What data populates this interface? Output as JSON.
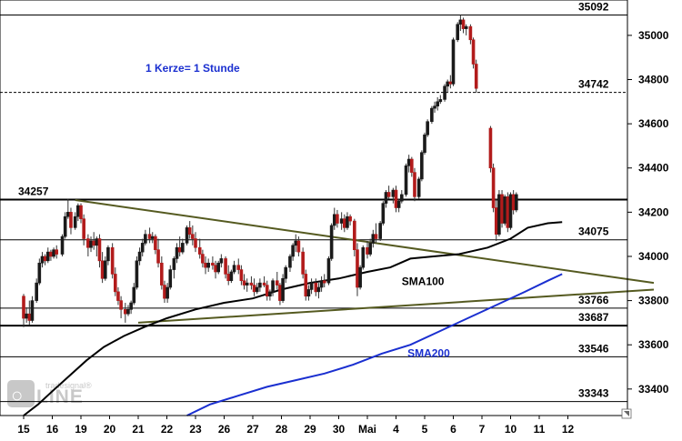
{
  "chart_data": {
    "type": "candlestick",
    "title": "",
    "ylim": [
      33280,
      35160
    ],
    "y_ticks": [
      33400,
      33600,
      33800,
      34000,
      34200,
      34400,
      34600,
      34800,
      35000
    ],
    "x_ticks": [
      "15",
      "16",
      "19",
      "20",
      "21",
      "22",
      "23",
      "26",
      "27",
      "28",
      "29",
      "30",
      "Mai",
      "4",
      "5",
      "6",
      "7",
      "10",
      "11",
      "12"
    ],
    "annotation": "1 Kerze= 1 Stunde",
    "levels": [
      {
        "value": 35092,
        "label": "35092",
        "style": "solid-thin"
      },
      {
        "value": 34742,
        "label": "34742",
        "style": "dashed"
      },
      {
        "value": 34257,
        "label": "34257",
        "style": "solid-thick"
      },
      {
        "value": 34075,
        "label": "34075",
        "style": "solid-thin"
      },
      {
        "value": 33766,
        "label": "33766",
        "style": "solid-thin"
      },
      {
        "value": 33687,
        "label": "33687",
        "style": "solid-thick"
      },
      {
        "value": 33546,
        "label": "33546",
        "style": "solid-thin"
      },
      {
        "value": 33343,
        "label": "33343",
        "style": "solid-thin"
      }
    ],
    "trendlines": [
      {
        "name": "upper",
        "from": [
          1.8,
          34255
        ],
        "to": [
          22.0,
          33880
        ],
        "color": "#555a20"
      },
      {
        "name": "lower",
        "from": [
          4.0,
          33700
        ],
        "to": [
          22.0,
          33850
        ],
        "color": "#555a20"
      }
    ],
    "series": [
      {
        "name": "SMA100",
        "color": "#000000",
        "points": [
          [
            0.0,
            33280
          ],
          [
            0.5,
            33330
          ],
          [
            1.0,
            33390
          ],
          [
            1.6,
            33460
          ],
          [
            2.2,
            33530
          ],
          [
            2.8,
            33590
          ],
          [
            3.5,
            33640
          ],
          [
            4.2,
            33680
          ],
          [
            5.0,
            33720
          ],
          [
            6.0,
            33760
          ],
          [
            7.0,
            33790
          ],
          [
            8.0,
            33810
          ],
          [
            9.0,
            33850
          ],
          [
            10.0,
            33880
          ],
          [
            11.0,
            33900
          ],
          [
            12.0,
            33930
          ],
          [
            12.8,
            33950
          ],
          [
            13.5,
            33990
          ],
          [
            14.3,
            34000
          ],
          [
            15.2,
            34010
          ],
          [
            16.2,
            34040
          ],
          [
            17.0,
            34080
          ],
          [
            17.6,
            34130
          ],
          [
            18.3,
            34150
          ],
          [
            18.8,
            34155
          ]
        ]
      },
      {
        "name": "SMA200",
        "color": "#1a2fd0",
        "points": [
          [
            5.7,
            33280
          ],
          [
            6.5,
            33330
          ],
          [
            7.5,
            33370
          ],
          [
            8.5,
            33410
          ],
          [
            9.5,
            33440
          ],
          [
            10.5,
            33470
          ],
          [
            11.5,
            33510
          ],
          [
            12.5,
            33560
          ],
          [
            13.5,
            33600
          ],
          [
            14.5,
            33660
          ],
          [
            15.5,
            33720
          ],
          [
            16.5,
            33780
          ],
          [
            17.5,
            33840
          ],
          [
            18.3,
            33890
          ],
          [
            18.8,
            33920
          ]
        ]
      }
    ],
    "series_labels": [
      {
        "text": "SMA100",
        "color": "#000000"
      },
      {
        "text": "SMA200",
        "color": "#1a2fd0"
      }
    ],
    "candles": [
      [
        0.0,
        33820,
        33830,
        33680,
        33720
      ],
      [
        0.1,
        33720,
        33770,
        33700,
        33740
      ],
      [
        0.2,
        33740,
        33800,
        33690,
        33710
      ],
      [
        0.3,
        33710,
        33820,
        33700,
        33800
      ],
      [
        0.45,
        33800,
        33900,
        33790,
        33880
      ],
      [
        0.55,
        33880,
        33990,
        33870,
        33970
      ],
      [
        0.65,
        33970,
        34020,
        33950,
        34000
      ],
      [
        0.75,
        34000,
        34010,
        33960,
        33980
      ],
      [
        0.85,
        33980,
        34040,
        33970,
        34020
      ],
      [
        0.95,
        34020,
        34030,
        33980,
        34000
      ],
      [
        1.05,
        34000,
        34040,
        33990,
        34030
      ],
      [
        1.15,
        34030,
        34050,
        33990,
        34010
      ],
      [
        1.35,
        34010,
        34100,
        34000,
        34090
      ],
      [
        1.45,
        34090,
        34200,
        34080,
        34180
      ],
      [
        1.55,
        34180,
        34260,
        34170,
        34200
      ],
      [
        1.65,
        34200,
        34220,
        34100,
        34130
      ],
      [
        1.8,
        34130,
        34200,
        34120,
        34180
      ],
      [
        1.9,
        34180,
        34240,
        34160,
        34230
      ],
      [
        2.0,
        34230,
        34240,
        34150,
        34170
      ],
      [
        2.1,
        34170,
        34190,
        34050,
        34080
      ],
      [
        2.25,
        34080,
        34100,
        34000,
        34040
      ],
      [
        2.35,
        34040,
        34090,
        34020,
        34070
      ],
      [
        2.45,
        34070,
        34110,
        34030,
        34050
      ],
      [
        2.55,
        34050,
        34090,
        34000,
        34080
      ],
      [
        2.65,
        34080,
        34100,
        33950,
        33980
      ],
      [
        2.75,
        33980,
        34020,
        33880,
        33900
      ],
      [
        2.85,
        33900,
        34000,
        33890,
        33980
      ],
      [
        2.95,
        33980,
        34050,
        33960,
        34040
      ],
      [
        3.1,
        34040,
        34060,
        33900,
        33920
      ],
      [
        3.2,
        33920,
        33950,
        33820,
        33840
      ],
      [
        3.3,
        33840,
        33860,
        33780,
        33800
      ],
      [
        3.4,
        33800,
        33820,
        33720,
        33760
      ],
      [
        3.55,
        33760,
        33790,
        33700,
        33740
      ],
      [
        3.65,
        33740,
        33780,
        33730,
        33760
      ],
      [
        3.75,
        33760,
        33800,
        33740,
        33790
      ],
      [
        3.85,
        33790,
        33880,
        33780,
        33860
      ],
      [
        3.95,
        33860,
        34000,
        33850,
        33980
      ],
      [
        4.05,
        33980,
        34040,
        33960,
        34020
      ],
      [
        4.15,
        34020,
        34080,
        34000,
        34060
      ],
      [
        4.25,
        34060,
        34120,
        34050,
        34100
      ],
      [
        4.4,
        34100,
        34130,
        34060,
        34080
      ],
      [
        4.5,
        34080,
        34110,
        34060,
        34090
      ],
      [
        4.6,
        34090,
        34100,
        34010,
        34030
      ],
      [
        4.7,
        34030,
        34080,
        33950,
        33970
      ],
      [
        4.82,
        33970,
        34000,
        33850,
        33870
      ],
      [
        4.92,
        33870,
        33890,
        33790,
        33810
      ],
      [
        5.02,
        33810,
        33880,
        33790,
        33860
      ],
      [
        5.12,
        33860,
        33960,
        33850,
        33940
      ],
      [
        5.25,
        33940,
        34000,
        33900,
        33990
      ],
      [
        5.35,
        33990,
        34060,
        33970,
        34040
      ],
      [
        5.45,
        34040,
        34090,
        34000,
        34020
      ],
      [
        5.55,
        34020,
        34080,
        34010,
        34060
      ],
      [
        5.7,
        34060,
        34140,
        34050,
        34130
      ],
      [
        5.8,
        34130,
        34160,
        34080,
        34100
      ],
      [
        5.9,
        34100,
        34140,
        34050,
        34080
      ],
      [
        6.0,
        34080,
        34110,
        34020,
        34040
      ],
      [
        6.15,
        34040,
        34080,
        33990,
        34010
      ],
      [
        6.25,
        34010,
        34030,
        33950,
        33970
      ],
      [
        6.35,
        33970,
        34000,
        33920,
        33950
      ],
      [
        6.45,
        33950,
        33990,
        33930,
        33970
      ],
      [
        6.6,
        33970,
        34000,
        33940,
        33960
      ],
      [
        6.7,
        33960,
        33980,
        33900,
        33930
      ],
      [
        6.8,
        33930,
        33980,
        33920,
        33970
      ],
      [
        6.9,
        33970,
        34010,
        33950,
        33990
      ],
      [
        7.05,
        33990,
        34000,
        33900,
        33920
      ],
      [
        7.15,
        33920,
        33960,
        33870,
        33890
      ],
      [
        7.25,
        33890,
        33940,
        33880,
        33930
      ],
      [
        7.35,
        33930,
        33980,
        33920,
        33960
      ],
      [
        7.5,
        33960,
        33990,
        33920,
        33940
      ],
      [
        7.6,
        33940,
        33960,
        33870,
        33890
      ],
      [
        7.7,
        33890,
        33920,
        33850,
        33870
      ],
      [
        7.8,
        33870,
        33900,
        33840,
        33880
      ],
      [
        7.95,
        33880,
        33910,
        33850,
        33870
      ],
      [
        8.05,
        33870,
        33900,
        33820,
        33840
      ],
      [
        8.15,
        33840,
        33880,
        33830,
        33860
      ],
      [
        8.25,
        33860,
        33900,
        33840,
        33880
      ],
      [
        8.4,
        33880,
        33910,
        33860,
        33870
      ],
      [
        8.5,
        33870,
        33890,
        33800,
        33820
      ],
      [
        8.6,
        33820,
        33850,
        33800,
        33840
      ],
      [
        8.7,
        33840,
        33900,
        33820,
        33890
      ],
      [
        8.85,
        33890,
        33930,
        33850,
        33870
      ],
      [
        8.95,
        33870,
        33880,
        33780,
        33800
      ],
      [
        9.05,
        33800,
        33920,
        33790,
        33900
      ],
      [
        9.15,
        33900,
        33960,
        33880,
        33950
      ],
      [
        9.3,
        33950,
        34010,
        33930,
        34000
      ],
      [
        9.4,
        34000,
        34060,
        33980,
        34050
      ],
      [
        9.5,
        34050,
        34100,
        34020,
        34070
      ],
      [
        9.6,
        34070,
        34090,
        34000,
        34020
      ],
      [
        9.75,
        34020,
        34040,
        33900,
        33920
      ],
      [
        9.85,
        33920,
        33940,
        33800,
        33820
      ],
      [
        9.95,
        33820,
        33870,
        33800,
        33850
      ],
      [
        10.05,
        33850,
        33900,
        33830,
        33880
      ],
      [
        10.2,
        33880,
        33900,
        33820,
        33840
      ],
      [
        10.3,
        33840,
        33880,
        33810,
        33860
      ],
      [
        10.4,
        33860,
        33910,
        33840,
        33890
      ],
      [
        10.5,
        33890,
        33920,
        33860,
        33880
      ],
      [
        10.65,
        33880,
        34000,
        33870,
        33990
      ],
      [
        10.75,
        33990,
        34150,
        33980,
        34140
      ],
      [
        10.85,
        34140,
        34220,
        34120,
        34190
      ],
      [
        10.95,
        34190,
        34210,
        34130,
        34150
      ],
      [
        11.1,
        34150,
        34200,
        34120,
        34170
      ],
      [
        11.2,
        34170,
        34190,
        34110,
        34130
      ],
      [
        11.3,
        34130,
        34200,
        34120,
        34180
      ],
      [
        11.4,
        34180,
        34190,
        34140,
        34160
      ],
      [
        11.55,
        34160,
        34170,
        34000,
        34030
      ],
      [
        11.65,
        34030,
        34060,
        33820,
        33860
      ],
      [
        11.75,
        33860,
        33960,
        33850,
        33950
      ],
      [
        11.85,
        33950,
        34050,
        33940,
        34040
      ],
      [
        12.0,
        34040,
        34070,
        33990,
        34010
      ],
      [
        12.1,
        34010,
        34080,
        34000,
        34060
      ],
      [
        12.2,
        34060,
        34120,
        34040,
        34100
      ],
      [
        12.3,
        34100,
        34150,
        34060,
        34080
      ],
      [
        12.45,
        34080,
        34160,
        34070,
        34150
      ],
      [
        12.55,
        34150,
        34250,
        34140,
        34240
      ],
      [
        12.65,
        34240,
        34300,
        34220,
        34290
      ],
      [
        12.75,
        34290,
        34320,
        34260,
        34270
      ],
      [
        12.9,
        34270,
        34310,
        34240,
        34300
      ],
      [
        13.0,
        34300,
        34320,
        34200,
        34220
      ],
      [
        13.1,
        34220,
        34260,
        34200,
        34250
      ],
      [
        13.2,
        34250,
        34300,
        34240,
        34280
      ],
      [
        13.35,
        34280,
        34420,
        34270,
        34410
      ],
      [
        13.45,
        34410,
        34460,
        34380,
        34440
      ],
      [
        13.55,
        34440,
        34450,
        34360,
        34380
      ],
      [
        13.65,
        34380,
        34400,
        34250,
        34270
      ],
      [
        13.8,
        34270,
        34360,
        34260,
        34350
      ],
      [
        13.9,
        34350,
        34480,
        34340,
        34470
      ],
      [
        14.0,
        34470,
        34560,
        34460,
        34550
      ],
      [
        14.1,
        34550,
        34620,
        34540,
        34610
      ],
      [
        14.25,
        34610,
        34680,
        34600,
        34670
      ],
      [
        14.35,
        34670,
        34700,
        34650,
        34680
      ],
      [
        14.45,
        34680,
        34720,
        34660,
        34700
      ],
      [
        14.55,
        34700,
        34730,
        34690,
        34710
      ],
      [
        14.7,
        34710,
        34780,
        34700,
        34770
      ],
      [
        14.8,
        34770,
        34800,
        34740,
        34790
      ],
      [
        14.9,
        34790,
        34820,
        34760,
        34780
      ],
      [
        15.0,
        34780,
        34990,
        34770,
        34980
      ],
      [
        15.15,
        34980,
        35060,
        34970,
        35050
      ],
      [
        15.25,
        35050,
        35092,
        35020,
        35070
      ],
      [
        15.35,
        35070,
        35080,
        35010,
        35030
      ],
      [
        15.45,
        35030,
        35050,
        35000,
        35040
      ],
      [
        15.6,
        35040,
        35050,
        34960,
        34980
      ],
      [
        15.7,
        34980,
        34990,
        34850,
        34870
      ],
      [
        15.8,
        34870,
        34890,
        34740,
        34760
      ],
      [
        16.3,
        34580,
        34590,
        34380,
        34400
      ],
      [
        16.4,
        34400,
        34420,
        34200,
        34220
      ],
      [
        16.5,
        34220,
        34260,
        34070,
        34100
      ],
      [
        16.6,
        34100,
        34300,
        34090,
        34280
      ],
      [
        16.7,
        34280,
        34300,
        34130,
        34150
      ],
      [
        16.8,
        34150,
        34280,
        34140,
        34270
      ],
      [
        16.9,
        34270,
        34290,
        34110,
        34130
      ],
      [
        17.0,
        34130,
        34290,
        34120,
        34280
      ],
      [
        17.1,
        34280,
        34300,
        34190,
        34210
      ],
      [
        17.2,
        34210,
        34290,
        34200,
        34280
      ]
    ],
    "up_color": "#1a1a1a",
    "down_color": "#b21b1b",
    "sma_label_values": {
      "SMA100": [
        13.2,
        33870
      ],
      "SMA200": [
        13.4,
        33545
      ]
    }
  },
  "watermark": {
    "brand": "tradesignal",
    "word": "online"
  }
}
